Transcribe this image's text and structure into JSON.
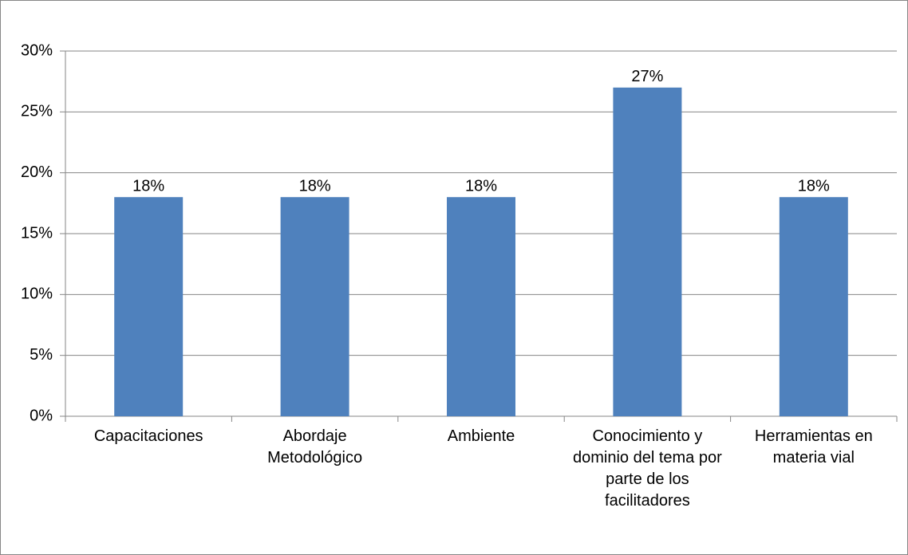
{
  "chart_data": {
    "type": "bar",
    "categories": [
      "Capacitaciones",
      "Abordaje Metodológico",
      "Ambiente",
      "Conocimiento y dominio del tema por parte de los facilitadores",
      "Herramientas en materia vial"
    ],
    "values": [
      18,
      18,
      18,
      27,
      18
    ],
    "value_labels": [
      "18%",
      "18%",
      "18%",
      "27%",
      "18%"
    ],
    "color": "#4f81bd",
    "ylim": [
      0,
      30
    ],
    "yticks": [
      {
        "value": 0,
        "label": "0%"
      },
      {
        "value": 5,
        "label": "5%"
      },
      {
        "value": 10,
        "label": "10%"
      },
      {
        "value": 15,
        "label": "15%"
      },
      {
        "value": 20,
        "label": "20%"
      },
      {
        "value": 25,
        "label": "25%"
      },
      {
        "value": 30,
        "label": "30%"
      }
    ],
    "grid": true
  }
}
